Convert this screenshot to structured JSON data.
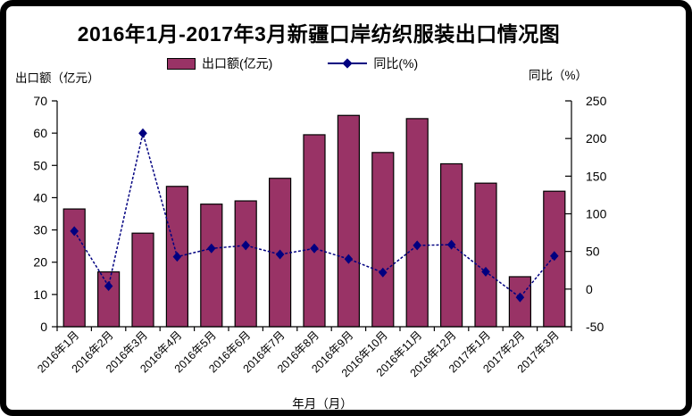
{
  "title": "2016年1月-2017年3月新疆口岸纺织服装出口情况图",
  "legend": {
    "export": {
      "label": "出口额(亿元)",
      "color": "#993366"
    },
    "yoy": {
      "label": "同比(%)",
      "color": "#000080"
    }
  },
  "axes": {
    "left_unit_label": "出口额（亿元）",
    "right_unit_label": "同比（%）",
    "x_axis_title": "年月（月）"
  },
  "chart_data": {
    "type": "bar+line",
    "title": "2016年1月-2017年3月新疆口岸纺织服装出口情况图",
    "categories": [
      "2016年1月",
      "2016年2月",
      "2016年3月",
      "2016年4月",
      "2016年5月",
      "2016年6月",
      "2016年7月",
      "2016年8月",
      "2016年9月",
      "2016年10月",
      "2016年11月",
      "2016年12月",
      "2017年1月",
      "2017年2月",
      "2017年3月"
    ],
    "series": [
      {
        "name": "出口额(亿元)",
        "type": "bar",
        "axis": "left",
        "color": "#993366",
        "border_color": "#000000",
        "values": [
          36.5,
          17,
          29,
          43.5,
          38,
          39,
          46,
          59.5,
          65.5,
          54,
          64.5,
          50.5,
          44.5,
          15.5,
          42
        ]
      },
      {
        "name": "同比(%)",
        "type": "line",
        "axis": "right",
        "color": "#000080",
        "marker": "diamond",
        "line_style": "dashed",
        "values": [
          77,
          4,
          207,
          43,
          54,
          58,
          46,
          54,
          40,
          22,
          58,
          59,
          23,
          -11,
          44
        ]
      }
    ],
    "left_axis": {
      "label": "出口额（亿元）",
      "min": 0,
      "max": 70,
      "step": 10
    },
    "right_axis": {
      "label": "同比（%）",
      "min": -50,
      "max": 250,
      "step": 50
    },
    "x_axis_title": "年月（月）",
    "grid": false,
    "legend_position": "top",
    "x_labels_rotated_degrees": 45
  }
}
